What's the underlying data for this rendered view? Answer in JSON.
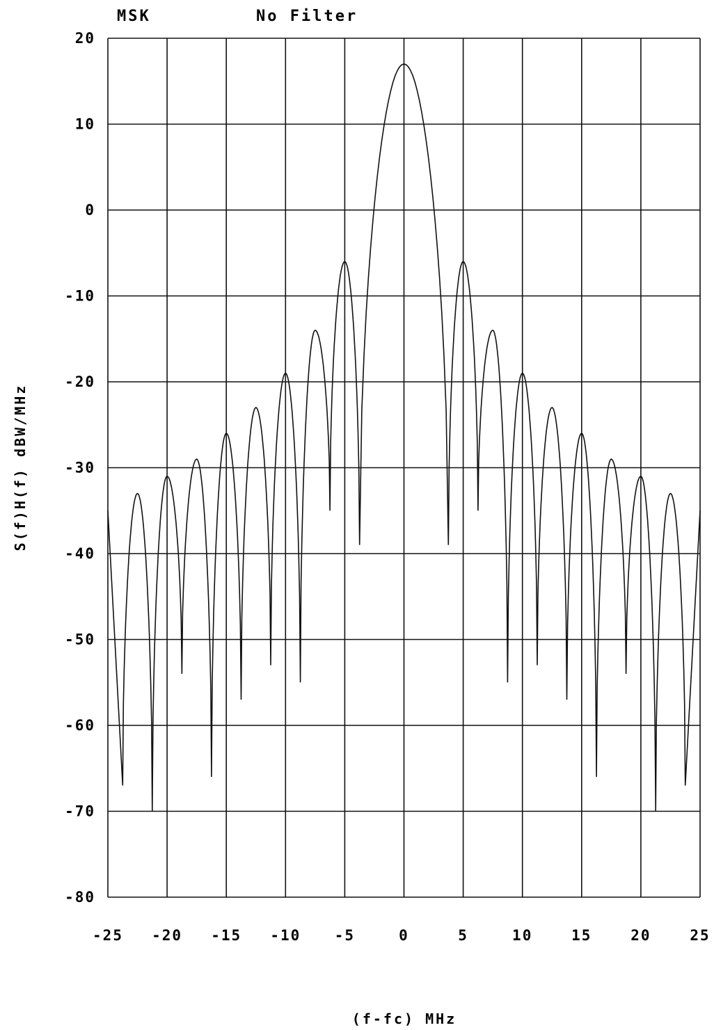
{
  "chart_data": {
    "type": "line",
    "title_left": "MSK",
    "title_right": "No Filter",
    "xlabel": "(f-fc) MHz",
    "ylabel": "S(f)H(f) dBW/MHz",
    "xlim": [
      -25,
      25
    ],
    "ylim": [
      -80,
      20
    ],
    "x_ticks": [
      -25,
      -20,
      -15,
      -10,
      -5,
      0,
      5,
      10,
      15,
      20,
      25
    ],
    "x_tick_labels": [
      "-25",
      "-20",
      "-15",
      "-10",
      "-5",
      "0",
      "5",
      "10",
      "15",
      "20",
      "25"
    ],
    "y_ticks": [
      20,
      10,
      0,
      -10,
      -20,
      -30,
      -40,
      -50,
      -60,
      -70,
      -80
    ],
    "y_tick_labels": [
      "20",
      "10",
      "0",
      "-10",
      "-20",
      "-30",
      "-40",
      "-50",
      "-60",
      "-70",
      "-80"
    ],
    "grid": true,
    "main_lobe_peak": {
      "x": 0,
      "y": 17
    },
    "side_lobe_peaks": [
      {
        "x": -25,
        "y": -35
      },
      {
        "x": -22.5,
        "y": -33
      },
      {
        "x": -20,
        "y": -31
      },
      {
        "x": -17.5,
        "y": -29
      },
      {
        "x": -15,
        "y": -26
      },
      {
        "x": -12.5,
        "y": -23
      },
      {
        "x": -10,
        "y": -19
      },
      {
        "x": -7.5,
        "y": -14
      },
      {
        "x": -5,
        "y": -6
      },
      {
        "x": 5,
        "y": -6
      },
      {
        "x": 7.5,
        "y": -14
      },
      {
        "x": 10,
        "y": -19
      },
      {
        "x": 12.5,
        "y": -23
      },
      {
        "x": 15,
        "y": -26
      },
      {
        "x": 17.5,
        "y": -29
      },
      {
        "x": 20,
        "y": -31
      },
      {
        "x": 22.5,
        "y": -33
      },
      {
        "x": 25,
        "y": -35
      }
    ],
    "nulls": [
      {
        "x": -23.75,
        "y": -67
      },
      {
        "x": -21.25,
        "y": -70
      },
      {
        "x": -18.75,
        "y": -54
      },
      {
        "x": -16.25,
        "y": -66
      },
      {
        "x": -13.75,
        "y": -57
      },
      {
        "x": -11.25,
        "y": -53
      },
      {
        "x": -8.75,
        "y": -55
      },
      {
        "x": -6.25,
        "y": -35
      },
      {
        "x": -3.75,
        "y": -39
      },
      {
        "x": 3.75,
        "y": -39
      },
      {
        "x": 6.25,
        "y": -35
      },
      {
        "x": 8.75,
        "y": -55
      },
      {
        "x": 11.25,
        "y": -53
      },
      {
        "x": 13.75,
        "y": -57
      },
      {
        "x": 16.25,
        "y": -66
      },
      {
        "x": 18.75,
        "y": -54
      },
      {
        "x": 21.25,
        "y": -70
      },
      {
        "x": 23.75,
        "y": -67
      }
    ],
    "line_color": "#111111",
    "grid_color": "#111111"
  }
}
